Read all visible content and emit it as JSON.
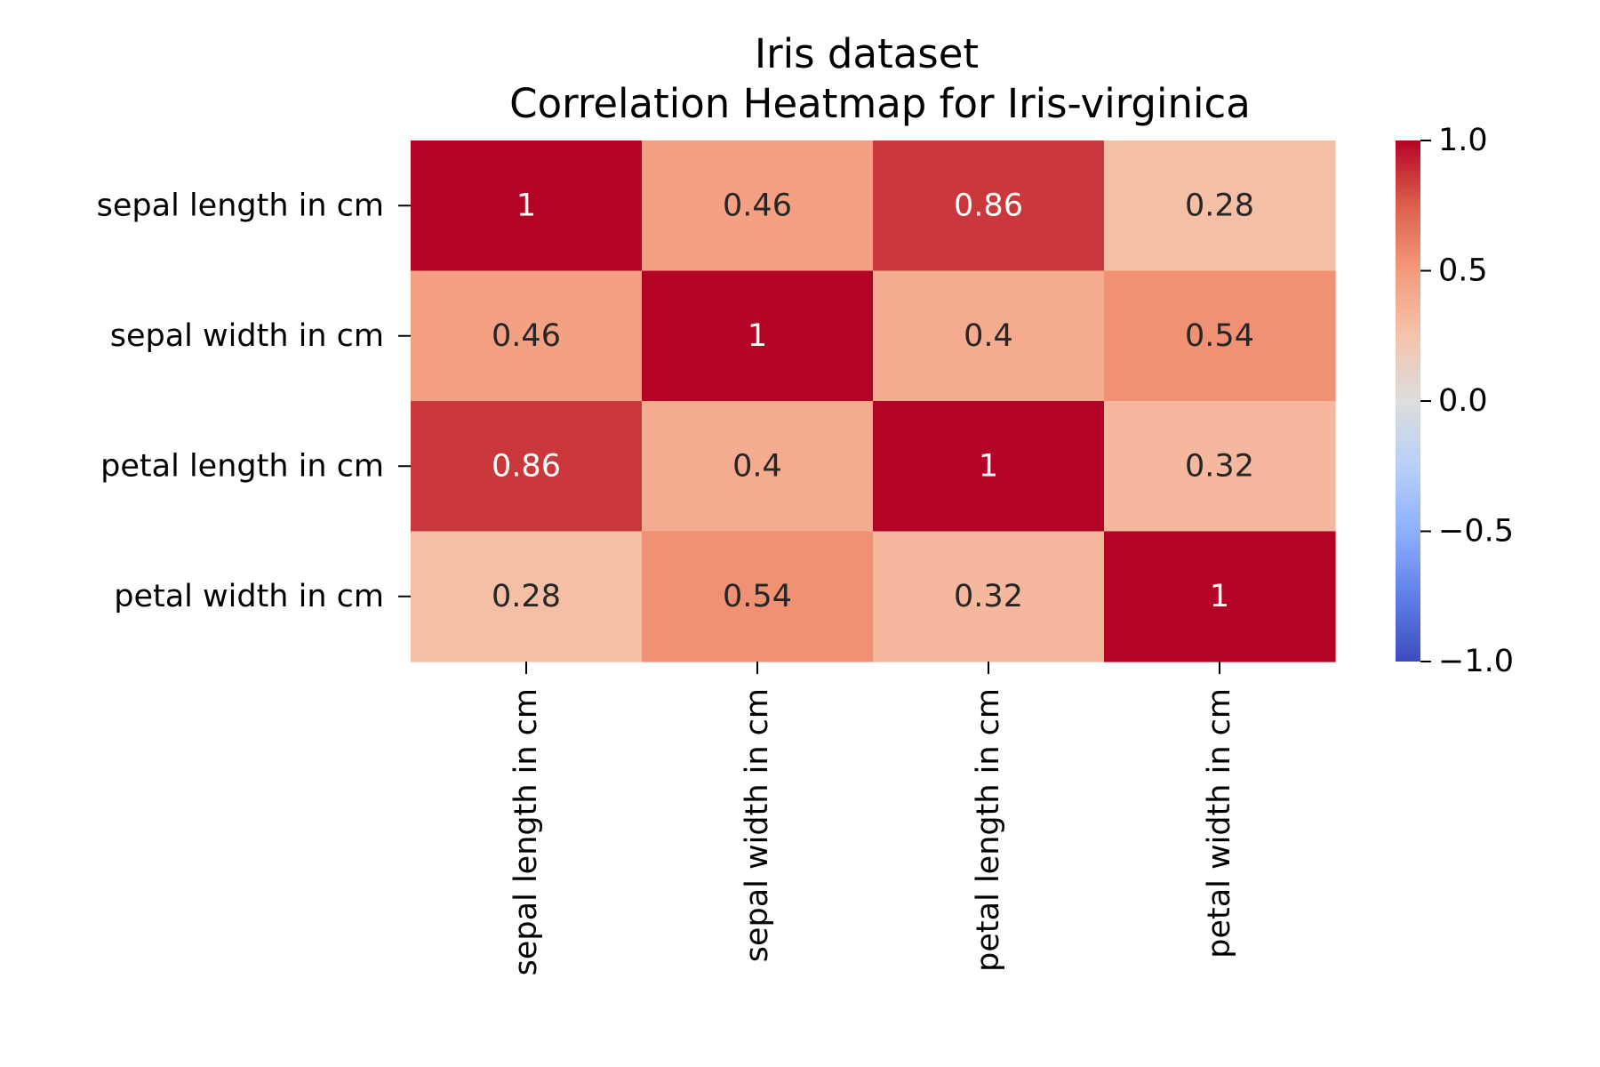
{
  "chart_data": {
    "type": "heatmap",
    "title": "Iris dataset",
    "subtitle": "Correlation Heatmap for Iris-virginica",
    "xlabel": "",
    "ylabel": "",
    "row_labels": [
      "sepal length in cm",
      "sepal width in cm",
      "petal length in cm",
      "petal width in cm"
    ],
    "column_labels": [
      "sepal length in cm",
      "sepal width in cm",
      "petal length in cm",
      "petal width in cm"
    ],
    "values": [
      [
        1,
        0.46,
        0.86,
        0.28
      ],
      [
        0.46,
        1,
        0.4,
        0.54
      ],
      [
        0.86,
        0.4,
        1,
        0.32
      ],
      [
        0.28,
        0.54,
        0.32,
        1
      ]
    ],
    "annotations": [
      [
        "1",
        "0.46",
        "0.86",
        "0.28"
      ],
      [
        "0.46",
        "1",
        "0.4",
        "0.54"
      ],
      [
        "0.86",
        "0.4",
        "1",
        "0.32"
      ],
      [
        "0.28",
        "0.54",
        "0.32",
        "1"
      ]
    ],
    "colormap": "coolwarm",
    "colorbar": {
      "range": [
        -1.0,
        1.0
      ],
      "ticks": [
        1.0,
        0.5,
        0.0,
        -0.5,
        -1.0
      ],
      "tick_labels": [
        "1.0",
        "0.5",
        "0.0",
        "−0.5",
        "−1.0"
      ],
      "placement": "right"
    },
    "grid": false
  }
}
